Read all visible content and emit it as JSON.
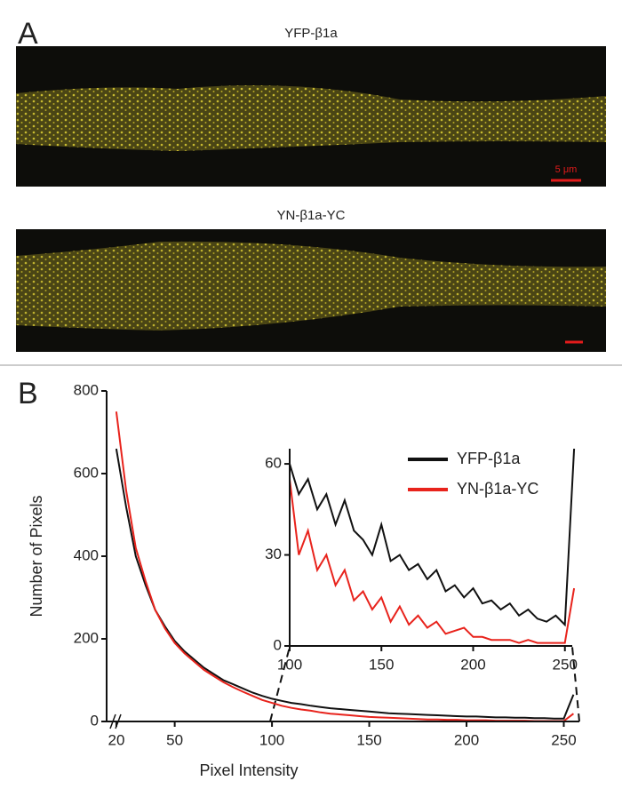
{
  "panel_a": {
    "label": "A",
    "images": [
      {
        "title": "YFP-β1a",
        "scale_label": "5 μm"
      },
      {
        "title": "YN-β1a-YC"
      }
    ]
  },
  "chart_data": [
    {
      "type": "line",
      "panel_label": "B",
      "x_label": "Pixel Intensity",
      "y_label": "Number of Pixels",
      "x": [
        20,
        25,
        30,
        35,
        40,
        45,
        50,
        55,
        60,
        65,
        70,
        75,
        80,
        85,
        90,
        95,
        100,
        105,
        110,
        115,
        120,
        125,
        130,
        135,
        140,
        145,
        150,
        155,
        160,
        165,
        170,
        175,
        180,
        185,
        190,
        195,
        200,
        205,
        210,
        215,
        220,
        225,
        230,
        235,
        240,
        245,
        250,
        255
      ],
      "series": [
        {
          "name": "YFP-β1a",
          "color": "#111111",
          "values": [
            660,
            520,
            400,
            330,
            270,
            230,
            195,
            170,
            150,
            130,
            115,
            100,
            90,
            80,
            70,
            62,
            55,
            50,
            45,
            42,
            38,
            35,
            32,
            30,
            28,
            26,
            24,
            22,
            20,
            19,
            18,
            17,
            16,
            15,
            14,
            13,
            12,
            12,
            11,
            10,
            10,
            9,
            9,
            8,
            8,
            7,
            7,
            65
          ]
        },
        {
          "name": "YN-β1a-YC",
          "color": "#e8231c",
          "values": [
            750,
            560,
            420,
            340,
            270,
            225,
            190,
            165,
            145,
            125,
            110,
            95,
            83,
            72,
            62,
            52,
            45,
            38,
            33,
            29,
            26,
            22,
            19,
            17,
            15,
            13,
            11,
            10,
            9,
            8,
            7,
            6,
            5,
            5,
            4,
            4,
            3,
            3,
            3,
            2,
            2,
            2,
            2,
            1,
            1,
            1,
            1,
            19
          ]
        }
      ],
      "xlim": [
        15,
        258
      ],
      "ylim": [
        0,
        800
      ],
      "xticks": [
        20,
        50,
        100,
        150,
        200,
        250
      ],
      "yticks": [
        0,
        200,
        400,
        600,
        800
      ]
    },
    {
      "type": "line",
      "x": [
        100,
        105,
        110,
        115,
        120,
        125,
        130,
        135,
        140,
        145,
        150,
        155,
        160,
        165,
        170,
        175,
        180,
        185,
        190,
        195,
        200,
        205,
        210,
        215,
        220,
        225,
        230,
        235,
        240,
        245,
        250,
        255
      ],
      "series": [
        {
          "name": "YFP-β1a",
          "color": "#111111",
          "values": [
            60,
            50,
            55,
            45,
            50,
            40,
            48,
            38,
            35,
            30,
            40,
            28,
            30,
            25,
            27,
            22,
            25,
            18,
            20,
            16,
            19,
            14,
            15,
            12,
            14,
            10,
            12,
            9,
            8,
            10,
            7,
            65
          ]
        },
        {
          "name": "YN-β1a-YC",
          "color": "#e8231c",
          "values": [
            55,
            30,
            38,
            25,
            30,
            20,
            25,
            15,
            18,
            12,
            16,
            8,
            13,
            7,
            10,
            6,
            8,
            4,
            5,
            6,
            3,
            3,
            2,
            2,
            2,
            1,
            2,
            1,
            1,
            1,
            1,
            19
          ]
        }
      ],
      "xlim": [
        100,
        254
      ],
      "ylim": [
        0,
        65
      ],
      "xticks": [
        100,
        150,
        200,
        250
      ],
      "yticks": [
        0,
        30,
        60
      ],
      "legend": "top-right"
    }
  ]
}
